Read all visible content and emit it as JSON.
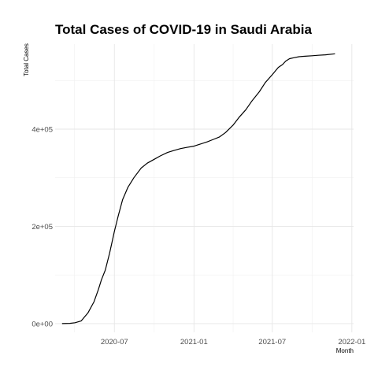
{
  "chart_data": {
    "type": "line",
    "title": "Total Cases of COVID-19 in Saudi Arabia",
    "xlabel": "Month",
    "ylabel": "Total Cases",
    "x_ticks": [
      "2020-07",
      "2021-01",
      "2021-07",
      "2022-01"
    ],
    "y_ticks": [
      "0e+00",
      "2e+05",
      "4e+05"
    ],
    "y_tick_values": [
      0,
      200000,
      400000
    ],
    "xlim": [
      "2020-02-15",
      "2022-01-05"
    ],
    "ylim": [
      -18000,
      575000
    ],
    "grid": true,
    "line_color": "#000000",
    "series": [
      {
        "x": [
          "2020-03-02",
          "2020-03-20",
          "2020-04-01",
          "2020-04-15",
          "2020-05-01",
          "2020-05-15",
          "2020-05-25",
          "2020-06-01",
          "2020-06-10",
          "2020-06-20",
          "2020-07-01",
          "2020-07-10",
          "2020-07-20",
          "2020-08-01",
          "2020-08-15",
          "2020-09-01",
          "2020-09-15",
          "2020-10-01",
          "2020-10-15",
          "2020-11-01",
          "2020-11-15",
          "2020-12-01",
          "2020-12-15",
          "2021-01-01",
          "2021-01-15",
          "2021-02-01",
          "2021-02-15",
          "2021-03-01",
          "2021-03-15",
          "2021-04-01",
          "2021-04-15",
          "2021-05-01",
          "2021-05-15",
          "2021-06-01",
          "2021-06-15",
          "2021-07-01",
          "2021-07-15",
          "2021-07-25",
          "2021-08-01",
          "2021-08-10",
          "2021-08-20",
          "2021-09-01",
          "2021-09-15",
          "2021-10-01",
          "2021-10-15",
          "2021-11-01",
          "2021-11-23"
        ],
        "y": [
          0,
          400,
          1800,
          5400,
          22000,
          45000,
          70000,
          90000,
          110000,
          145000,
          190000,
          222000,
          255000,
          280000,
          300000,
          320000,
          330000,
          338000,
          345000,
          352000,
          356000,
          360000,
          362500,
          365000,
          369000,
          374000,
          379000,
          384000,
          393000,
          408000,
          424000,
          440000,
          458000,
          477000,
          496000,
          512000,
          527000,
          533000,
          540000,
          545000,
          547000,
          549000,
          550000,
          551000,
          552000,
          553000,
          555000
        ]
      }
    ]
  }
}
